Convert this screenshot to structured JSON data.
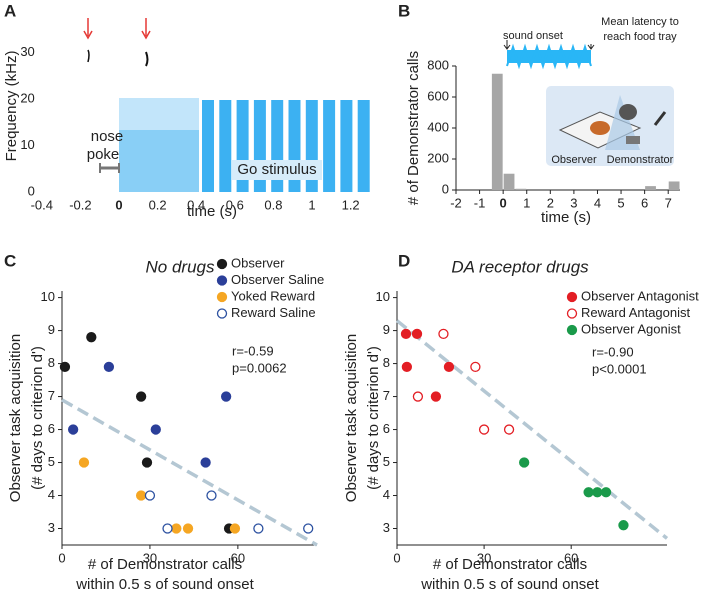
{
  "chart_data": [
    {
      "type": "spectrogram",
      "panel_label": "A",
      "ylabel": "Frequency (kHz)",
      "xlabel": "time (s)",
      "xlim": [
        -0.4,
        1.35
      ],
      "ylim": [
        0,
        37
      ],
      "xticks": [
        -0.4,
        -0.2,
        0,
        0.2,
        0.4,
        0.6,
        0.8,
        1.0,
        1.2
      ],
      "yticks": [
        0,
        10,
        20,
        30
      ],
      "annotations": [
        "nose",
        "poke",
        "Go stimulus"
      ]
    },
    {
      "type": "histogram",
      "panel_label": "B",
      "ylabel": "# of Demonstrator calls",
      "xlabel": "time (s)",
      "xlim": [
        -2,
        7.5
      ],
      "ylim": [
        0,
        800
      ],
      "xticks": [
        -2,
        -1,
        0,
        1,
        2,
        3,
        4,
        5,
        6,
        7
      ],
      "yticks": [
        0,
        200,
        400,
        600,
        800
      ],
      "bins": [
        -0.5,
        0,
        0.5,
        1,
        1.5,
        2,
        2.5,
        3,
        3.5,
        4,
        4.5,
        5,
        5.5,
        6,
        6.5,
        7,
        7.5
      ],
      "counts": [
        750,
        105,
        8,
        0,
        0,
        0,
        0,
        0,
        0,
        0,
        0,
        0,
        0,
        25,
        0,
        55
      ],
      "color": "#a6a6a6",
      "annotations": [
        "sound onset",
        "Mean latency to",
        "reach food tray",
        "Observer",
        "Demonstrator"
      ]
    },
    {
      "type": "scatter",
      "panel_label": "C",
      "title": "No drugs",
      "ylabel": [
        "Observer task acquisition",
        "(# days to criterion d')"
      ],
      "xlabel": [
        "# of Demonstrator calls",
        "within 0.5 s of sound onset"
      ],
      "xlim": [
        0,
        87
      ],
      "ylim": [
        2.5,
        10.2
      ],
      "xticks": [
        0,
        30,
        60
      ],
      "yticks": [
        3,
        4,
        5,
        6,
        7,
        8,
        9,
        10
      ],
      "series": [
        {
          "name": "Observer",
          "color": "#1a1a1a",
          "marker": "filled",
          "x": [
            1,
            10,
            27,
            29,
            57
          ],
          "values": [
            7.9,
            8.8,
            7.0,
            5.0,
            3.0
          ]
        },
        {
          "name": "Observer Saline",
          "color": "#2b3f99",
          "marker": "filled",
          "x": [
            3.8,
            16,
            32,
            49,
            56
          ],
          "values": [
            6.0,
            7.9,
            6.0,
            5.0,
            7.0
          ]
        },
        {
          "name": "Yoked Reward",
          "color": "#f5a623",
          "marker": "filled",
          "x": [
            7.5,
            27,
            39,
            43,
            59
          ],
          "values": [
            5.0,
            4.0,
            3.0,
            3.0,
            3.0
          ]
        },
        {
          "name": "Reward Saline",
          "color": "#2b50a0",
          "marker": "open",
          "x": [
            30,
            36,
            51,
            67,
            84
          ],
          "values": [
            4.0,
            3.0,
            4.0,
            3.0,
            3.0
          ]
        }
      ],
      "fit": {
        "x": [
          0,
          87
        ],
        "values": [
          6.9,
          2.5
        ],
        "color": "#b4c7d3"
      },
      "stats": [
        "r=-0.59",
        "p=0.0062"
      ]
    },
    {
      "type": "scatter",
      "panel_label": "D",
      "title": "DA receptor drugs",
      "ylabel": [
        "Observer task acquisition",
        "(# days to criterion d')"
      ],
      "xlabel": [
        "# of Demonstrator calls",
        "within 0.5 s of sound onset"
      ],
      "xlim": [
        0,
        93
      ],
      "ylim": [
        2.5,
        10.2
      ],
      "xticks": [
        0,
        30,
        60
      ],
      "yticks": [
        3,
        4,
        5,
        6,
        7,
        8,
        9,
        10
      ],
      "series": [
        {
          "name": "Observer Antagonist",
          "color": "#e31e24",
          "marker": "filled",
          "x": [
            3.1,
            6.9,
            3.4,
            13.4,
            17.9
          ],
          "values": [
            8.9,
            8.9,
            7.9,
            7.0,
            7.9
          ]
        },
        {
          "name": "Reward Antagonist",
          "color": "#e31e24",
          "marker": "open",
          "x": [
            16,
            7.2,
            27,
            30,
            38.6
          ],
          "values": [
            8.9,
            7.0,
            7.9,
            6.0,
            6.0
          ]
        },
        {
          "name": "Observer Agonist",
          "color": "#1a9a4a",
          "marker": "filled",
          "x": [
            43.8,
            66,
            69,
            72,
            78
          ],
          "values": [
            5.0,
            4.1,
            4.1,
            4.1,
            3.1
          ]
        }
      ],
      "fit": {
        "x": [
          0,
          93
        ],
        "values": [
          9.3,
          2.7
        ],
        "color": "#b4c7d3"
      },
      "stats": [
        "r=-0.90",
        "p<0.0001"
      ]
    }
  ]
}
